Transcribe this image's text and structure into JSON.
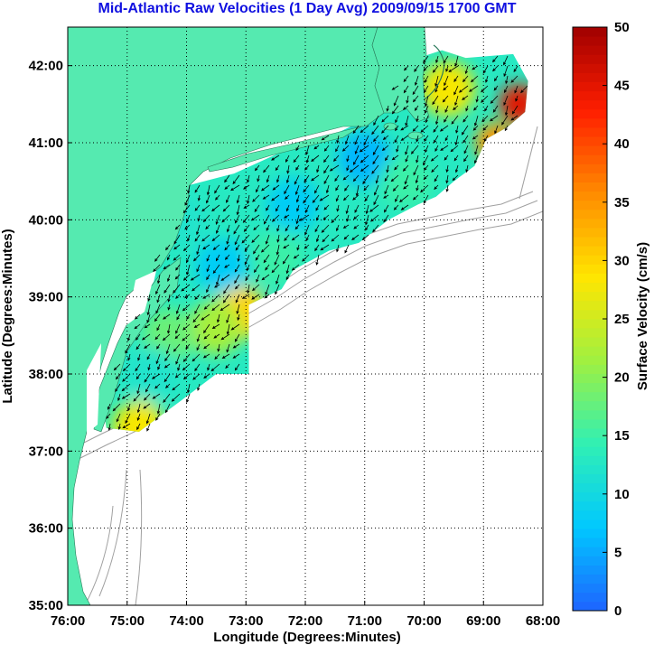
{
  "title": "Mid-Atlantic Raw Velocities (1 Day Avg) 2009/09/15 1700 GMT",
  "colors": {
    "land": "#55eab0",
    "title": "#1010e0",
    "colormap": [
      "#1e64ff",
      "#00c8ff",
      "#30f0b4",
      "#a0f040",
      "#ffe600",
      "#ff8c00",
      "#ff1e00",
      "#a00000"
    ]
  },
  "chart_data": {
    "type": "heatmap",
    "plot_kind": "surface-current vector map",
    "xlabel": "Longitude (Degrees:Minutes)",
    "ylabel": "Latitude (Degrees:Minutes)",
    "xlim": [
      -76,
      -68
    ],
    "ylim": [
      35,
      42.5
    ],
    "xticks": [
      -76,
      -75,
      -74,
      -73,
      -72,
      -71,
      -70,
      -69,
      -68
    ],
    "xtick_labels": [
      "76:00",
      "75:00",
      "74:00",
      "73:00",
      "72:00",
      "71:00",
      "70:00",
      "69:00",
      "68:00"
    ],
    "yticks": [
      35,
      36,
      37,
      38,
      39,
      40,
      41,
      42
    ],
    "ytick_labels": [
      "35:00",
      "36:00",
      "37:00",
      "38:00",
      "39:00",
      "40:00",
      "41:00",
      "42:00"
    ],
    "grid": true,
    "colorbar": {
      "label": "Surface Velocity (cm/s)",
      "range": [
        0,
        50
      ],
      "ticks": [
        0,
        5,
        10,
        15,
        20,
        25,
        30,
        35,
        40,
        45,
        50
      ]
    },
    "coverage_polygon_lonlat": [
      [
        -75.35,
        37.3
      ],
      [
        -74.8,
        37.25
      ],
      [
        -74.1,
        37.65
      ],
      [
        -73.5,
        38.0
      ],
      [
        -72.95,
        38.0
      ],
      [
        -72.95,
        38.9
      ],
      [
        -72.4,
        39.1
      ],
      [
        -72.2,
        39.35
      ],
      [
        -71.6,
        39.6
      ],
      [
        -71.1,
        39.7
      ],
      [
        -70.6,
        40.0
      ],
      [
        -70.1,
        40.2
      ],
      [
        -69.8,
        40.3
      ],
      [
        -69.5,
        40.5
      ],
      [
        -69.15,
        40.7
      ],
      [
        -68.95,
        41.05
      ],
      [
        -68.6,
        41.2
      ],
      [
        -68.3,
        41.4
      ],
      [
        -68.25,
        41.8
      ],
      [
        -68.5,
        42.15
      ],
      [
        -69.3,
        42.1
      ],
      [
        -69.7,
        42.2
      ],
      [
        -70.3,
        42.05
      ],
      [
        -70.7,
        41.4
      ],
      [
        -71.4,
        41.15
      ],
      [
        -72.2,
        40.95
      ],
      [
        -73.2,
        40.6
      ],
      [
        -73.95,
        40.45
      ],
      [
        -74.05,
        40.05
      ],
      [
        -74.45,
        39.55
      ],
      [
        -74.55,
        39.2
      ],
      [
        -74.9,
        38.75
      ],
      [
        -75.05,
        38.4
      ],
      [
        -75.2,
        37.85
      ],
      [
        -75.4,
        37.55
      ]
    ],
    "speed_regions": [
      {
        "center": [
          -68.4,
          41.5
        ],
        "speed_cms": 45
      },
      {
        "center": [
          -68.8,
          41.0
        ],
        "speed_cms": 35
      },
      {
        "center": [
          -69.6,
          41.7
        ],
        "speed_cms": 28
      },
      {
        "center": [
          -73.1,
          38.8
        ],
        "speed_cms": 30
      },
      {
        "center": [
          -73.5,
          38.6
        ],
        "speed_cms": 22
      },
      {
        "center": [
          -74.3,
          38.5
        ],
        "speed_cms": 18
      },
      {
        "center": [
          -74.8,
          37.3
        ],
        "speed_cms": 28
      },
      {
        "center": [
          -71.0,
          40.8
        ],
        "speed_cms": 6
      },
      {
        "center": [
          -73.4,
          39.4
        ],
        "speed_cms": 8
      },
      {
        "center": [
          -72.2,
          40.2
        ],
        "speed_cms": 8
      },
      {
        "center": [
          -74.1,
          40.0
        ],
        "speed_cms": 12
      },
      {
        "center": [
          -72.5,
          39.5
        ],
        "speed_cms": 15
      },
      {
        "center": [
          -70.3,
          40.5
        ],
        "speed_cms": 15
      },
      {
        "center": [
          -74.6,
          38.0
        ],
        "speed_cms": 12
      }
    ]
  }
}
